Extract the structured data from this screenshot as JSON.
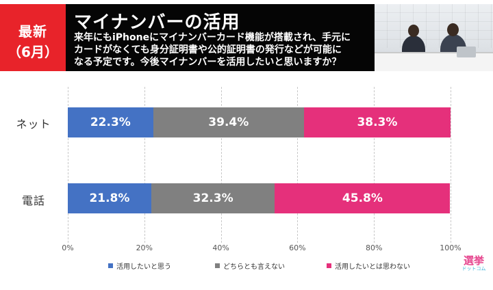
{
  "badge": {
    "line1": "最新",
    "line2": "（6月）"
  },
  "header": {
    "title": "マイナンバーの活用",
    "question_lines": [
      "来年にもiPhoneにマイナンバーカード機能が搭載され、手元に",
      "カードがなくても身分証明書や公的証明書の発行などが可能に",
      "なる予定です。今後マイナンバーを活用したいと思いますか？"
    ]
  },
  "logo": {
    "main": "選挙",
    "sub": "ドットコム"
  },
  "colors": {
    "series1": "#4472c4",
    "series2": "#808080",
    "series3": "#e5307b",
    "badge": "#e8232a",
    "header_bg": "#050505"
  },
  "chart_data": {
    "type": "bar",
    "orientation": "horizontal",
    "stacked": true,
    "categories": [
      "ネット",
      "電話"
    ],
    "series": [
      {
        "name": "活用したいと思う",
        "values": [
          22.3,
          21.8
        ],
        "labels": [
          "22.3%",
          "21.8%"
        ]
      },
      {
        "name": "どちらとも言えない",
        "values": [
          39.4,
          32.3
        ],
        "labels": [
          "39.4%",
          "32.3%"
        ]
      },
      {
        "name": "活用したいとは思わない",
        "values": [
          38.3,
          45.8
        ],
        "labels": [
          "38.3%",
          "45.8%"
        ]
      }
    ],
    "xlim": [
      0,
      100
    ],
    "xticks": [
      "0%",
      "20%",
      "40%",
      "60%",
      "80%",
      "100%"
    ],
    "grid": true,
    "legend_position": "bottom"
  }
}
